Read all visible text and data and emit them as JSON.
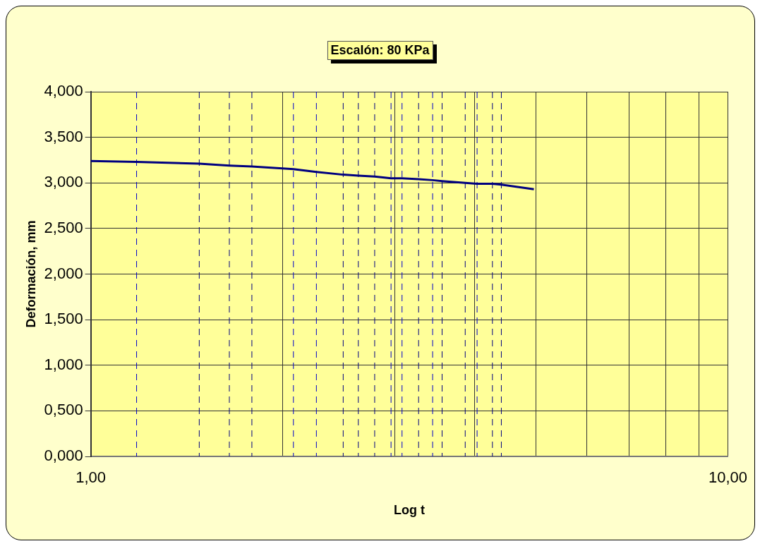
{
  "chart_data": {
    "type": "line",
    "title": "Escalón: 80 KPa",
    "xlabel": "Log t",
    "ylabel": "Deformación, mm",
    "log": "x",
    "grid": true,
    "legend": false,
    "marker": "none",
    "line_style": "solid",
    "xlim": [
      1,
      10
    ],
    "ylim": [
      0,
      4
    ],
    "xticks": [
      {
        "value": 1,
        "label": "1,00"
      },
      {
        "value": 2,
        "label": null
      },
      {
        "value": 3,
        "label": null
      },
      {
        "value": 4,
        "label": null
      },
      {
        "value": 5,
        "label": null
      },
      {
        "value": 6,
        "label": null
      },
      {
        "value": 7,
        "label": null
      },
      {
        "value": 8,
        "label": null
      },
      {
        "value": 9,
        "label": null
      },
      {
        "value": 10,
        "label": "10,00"
      }
    ],
    "yticks": [
      {
        "value": 0,
        "label": "0,000"
      },
      {
        "value": 0.5,
        "label": "0,500"
      },
      {
        "value": 1,
        "label": "1,000"
      },
      {
        "value": 1.5,
        "label": "1,500"
      },
      {
        "value": 2,
        "label": "2,000"
      },
      {
        "value": 2.5,
        "label": "2,500"
      },
      {
        "value": 3,
        "label": "3,000"
      },
      {
        "value": 3.5,
        "label": "3,500"
      },
      {
        "value": 4,
        "label": "4,000"
      }
    ],
    "series": [
      {
        "color": "#000080",
        "x": [
          1.0,
          1.18,
          1.48,
          1.65,
          1.79,
          2.08,
          2.26,
          2.49,
          2.63,
          2.79,
          2.96,
          3.08,
          3.27,
          3.44,
          3.56,
          3.87,
          4.04,
          4.27,
          4.41,
          4.96
        ],
        "values": [
          3.24,
          3.23,
          3.21,
          3.19,
          3.18,
          3.15,
          3.12,
          3.09,
          3.08,
          3.07,
          3.05,
          3.05,
          3.04,
          3.03,
          3.02,
          3.0,
          2.99,
          2.99,
          2.98,
          2.93
        ]
      }
    ],
    "ref_lines": [
      {
        "axis": "x",
        "value": 1.18,
        "color": "#0000cc",
        "line_style": "dashed"
      },
      {
        "axis": "x",
        "value": 1.48,
        "color": "#000080",
        "line_style": "dashed"
      },
      {
        "axis": "x",
        "value": 1.65,
        "color": "#000080",
        "line_style": "dashed"
      },
      {
        "axis": "x",
        "value": 1.79,
        "color": "#000080",
        "line_style": "dashed"
      },
      {
        "axis": "x",
        "value": 2.08,
        "color": "#0000cc",
        "line_style": "dashed"
      },
      {
        "axis": "x",
        "value": 2.26,
        "color": "#0000cc",
        "line_style": "dashed"
      },
      {
        "axis": "x",
        "value": 2.49,
        "color": "#000080",
        "line_style": "dashed"
      },
      {
        "axis": "x",
        "value": 2.63,
        "color": "#000080",
        "line_style": "dashed"
      },
      {
        "axis": "x",
        "value": 2.79,
        "color": "#000080",
        "line_style": "dashed"
      },
      {
        "axis": "x",
        "value": 2.96,
        "color": "#0000cc",
        "line_style": "dashed"
      },
      {
        "axis": "x",
        "value": 3.08,
        "color": "#0000cc",
        "line_style": "dashed"
      },
      {
        "axis": "x",
        "value": 3.27,
        "color": "#000080",
        "line_style": "dashed"
      },
      {
        "axis": "x",
        "value": 3.44,
        "color": "#0000cc",
        "line_style": "dashed"
      },
      {
        "axis": "x",
        "value": 3.56,
        "color": "#000080",
        "line_style": "dashed"
      },
      {
        "axis": "x",
        "value": 3.87,
        "color": "#000080",
        "line_style": "dashed"
      },
      {
        "axis": "x",
        "value": 4.04,
        "color": "#0000cc",
        "line_style": "dashed"
      },
      {
        "axis": "x",
        "value": 4.27,
        "color": "#000080",
        "line_style": "dashed"
      },
      {
        "axis": "x",
        "value": 4.41,
        "color": "#000080",
        "line_style": "dashed"
      }
    ]
  }
}
